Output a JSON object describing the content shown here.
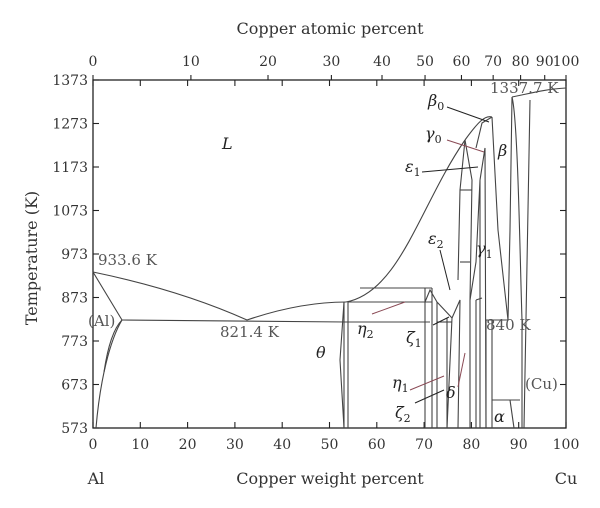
{
  "diagram": {
    "top_axis_title": "Copper atomic percent",
    "bottom_axis_title": "Copper weight percent",
    "y_axis_title": "Temperature (K)",
    "left_element": "Al",
    "right_element": "Cu",
    "x_range": [
      0,
      100
    ],
    "y_range": [
      573,
      1373
    ],
    "weight_ticks": [
      "0",
      "10",
      "20",
      "30",
      "40",
      "50",
      "60",
      "70",
      "80",
      "90",
      "100"
    ],
    "atomic_ticks": [
      {
        "label": "0",
        "wt": 0
      },
      {
        "label": "10",
        "wt": 20.7
      },
      {
        "label": "20",
        "wt": 37.0
      },
      {
        "label": "30",
        "wt": 50.4
      },
      {
        "label": "40",
        "wt": 61.1
      },
      {
        "label": "50",
        "wt": 70.2
      },
      {
        "label": "60",
        "wt": 77.9
      },
      {
        "label": "70",
        "wt": 84.6
      },
      {
        "label": "80",
        "wt": 90.4
      },
      {
        "label": "90",
        "wt": 95.5
      },
      {
        "label": "100",
        "wt": 100
      }
    ],
    "temperature_ticks": [
      "1373",
      "1273",
      "1173",
      "1073",
      "973",
      "873",
      "773",
      "673",
      "573"
    ],
    "annotations": {
      "al_melting": "933.6 K",
      "eutectic": "821.4 K",
      "cu_melting": "1337.7 K",
      "eutectoid": "840 K"
    },
    "phases": {
      "liquid": "L",
      "al_solid": "(Al)",
      "cu_solid": "(Cu)",
      "theta": "θ",
      "eta2_base": "η",
      "eta2_sub": "2",
      "zeta1_base": "ζ",
      "zeta1_sub": "1",
      "eta1_base": "η",
      "eta1_sub": "1",
      "zeta2_base": "ζ",
      "zeta2_sub": "2",
      "delta": "δ",
      "alpha": "α",
      "beta": "β",
      "beta0_base": "β",
      "beta0_sub": "0",
      "gamma0_base": "γ",
      "gamma0_sub": "0",
      "eps1_base": "ε",
      "eps1_sub": "1",
      "eps2_base": "ε",
      "eps2_sub": "2",
      "gamma1_base": "γ",
      "gamma1_sub": "1"
    }
  }
}
